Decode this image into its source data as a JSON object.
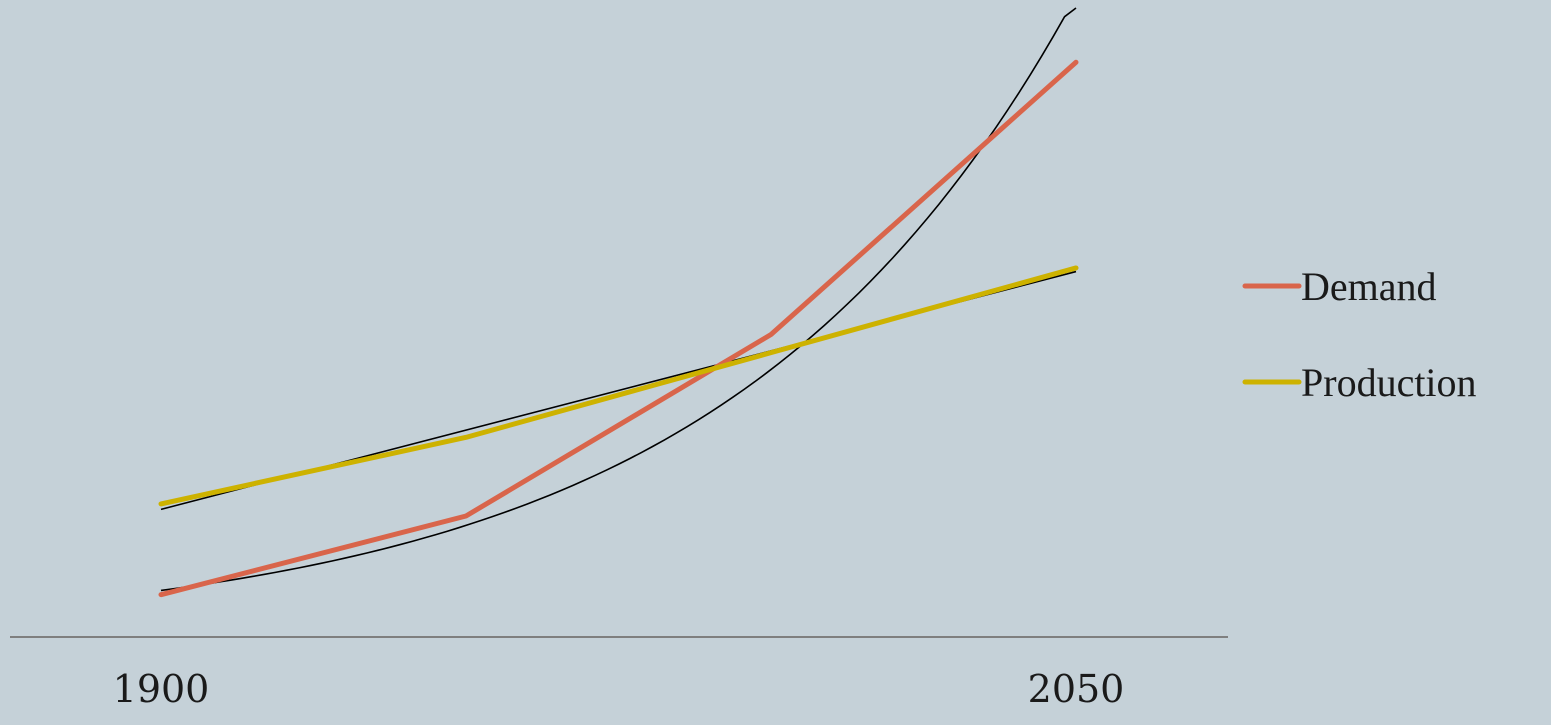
{
  "chart_data": {
    "type": "line",
    "x": [
      1900,
      1950,
      2000,
      2050
    ],
    "xticks": [
      "1900",
      "2050"
    ],
    "xlim": [
      1900,
      2050
    ],
    "ylim": [
      0,
      100
    ],
    "series": [
      {
        "name": "Demand",
        "color": "#d9654b",
        "values": [
          7,
          20,
          50,
          95
        ],
        "trendline": {
          "kind": "exponential",
          "color": "#000000"
        }
      },
      {
        "name": "Production",
        "color": "#cdb200",
        "values": [
          22,
          33,
          47,
          61
        ],
        "trendline": {
          "kind": "linear",
          "color": "#000000"
        }
      }
    ],
    "legend": "right",
    "grid": false,
    "axis_color": "#7f7f7f",
    "background": "#c5d1d8"
  }
}
